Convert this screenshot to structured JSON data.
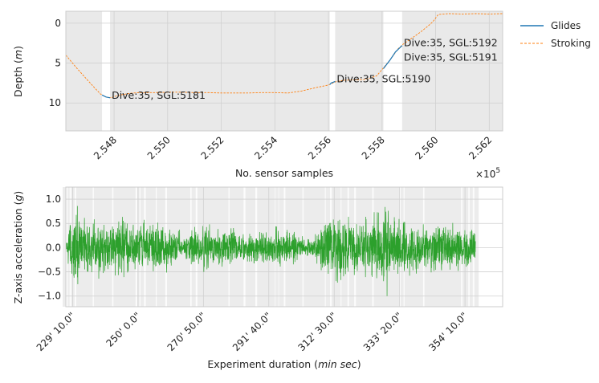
{
  "chart_data": [
    {
      "type": "line",
      "xlabel": "No. sensor samples",
      "ylabel_main": "Depth (",
      "ylabel_unit": "m",
      "ylabel_close": ")",
      "x_scale_label": "×10",
      "x_scale_exp": "5",
      "x_ticks": [
        2.548,
        2.55,
        2.552,
        2.554,
        2.556,
        2.558,
        2.56,
        2.562
      ],
      "x_tick_labels": [
        "2.548",
        "2.550",
        "2.552",
        "2.554",
        "2.556",
        "2.558",
        "2.560",
        "2.562"
      ],
      "xlim": [
        2.5462,
        2.5625
      ],
      "y_ticks": [
        0,
        5,
        10
      ],
      "y_tick_labels": [
        "0",
        "5",
        "10"
      ],
      "ylim": [
        13.5,
        -1.5
      ],
      "y_inverted": true,
      "grid": true,
      "legend_position": "outside-right",
      "shaded_spans": [
        [
          2.5462,
          2.54755
        ],
        [
          2.54785,
          2.55605
        ],
        [
          2.55625,
          2.55805
        ],
        [
          2.55875,
          2.5625
        ]
      ],
      "series": [
        {
          "name": "Glides",
          "color": "#1f77b4",
          "style": "solid",
          "segments": [
            [
              [
                2.54755,
                9.0
              ],
              [
                2.5477,
                9.25
              ],
              [
                2.54785,
                9.35
              ]
            ],
            [
              [
                2.55605,
                7.7
              ],
              [
                2.5561,
                7.5
              ],
              [
                2.55625,
                7.3
              ]
            ],
            [
              [
                2.55805,
                5.7
              ],
              [
                2.5583,
                4.6
              ],
              [
                2.5585,
                3.6
              ],
              [
                2.55875,
                2.8
              ]
            ]
          ]
        },
        {
          "name": "Stroking",
          "color": "#ff7f0e",
          "style": "dashed",
          "points": [
            [
              2.5462,
              4.0
            ],
            [
              2.5466,
              5.6
            ],
            [
              2.547,
              7.1
            ],
            [
              2.5473,
              8.2
            ],
            [
              2.5475,
              8.9
            ],
            [
              2.5477,
              9.25
            ],
            [
              2.5479,
              9.35
            ],
            [
              2.548,
              9.2
            ],
            [
              2.5483,
              8.95
            ],
            [
              2.5487,
              8.75
            ],
            [
              2.549,
              8.7
            ],
            [
              2.5495,
              8.7
            ],
            [
              2.55,
              8.65
            ],
            [
              2.5505,
              8.65
            ],
            [
              2.551,
              8.7
            ],
            [
              2.5515,
              8.7
            ],
            [
              2.552,
              8.75
            ],
            [
              2.5525,
              8.75
            ],
            [
              2.553,
              8.75
            ],
            [
              2.5535,
              8.7
            ],
            [
              2.554,
              8.7
            ],
            [
              2.5545,
              8.75
            ],
            [
              2.555,
              8.5
            ],
            [
              2.5555,
              8.1
            ],
            [
              2.556,
              7.75
            ],
            [
              2.5563,
              7.3
            ],
            [
              2.5566,
              7.15
            ],
            [
              2.557,
              7.1
            ],
            [
              2.5574,
              7.05
            ],
            [
              2.5578,
              6.6
            ],
            [
              2.558,
              5.8
            ],
            [
              2.5583,
              4.6
            ],
            [
              2.5586,
              3.2
            ],
            [
              2.5588,
              2.6
            ],
            [
              2.5591,
              1.9
            ],
            [
              2.5594,
              1.2
            ],
            [
              2.5597,
              0.4
            ],
            [
              2.5599,
              -0.2
            ],
            [
              2.5601,
              -1.1
            ],
            [
              2.5605,
              -1.2
            ],
            [
              2.561,
              -1.15
            ],
            [
              2.5615,
              -1.2
            ],
            [
              2.562,
              -1.15
            ],
            [
              2.5625,
              -1.2
            ]
          ]
        }
      ],
      "annotations": [
        {
          "text": "Dive:35, SGL:5181",
          "x": 2.54785,
          "y": 9.35
        },
        {
          "text": "Dive:35, SGL:5190",
          "x": 2.55625,
          "y": 7.3
        },
        {
          "text": "Dive:35, SGL:5191",
          "x": 2.55875,
          "y": 4.6
        },
        {
          "text": "Dive:35, SGL:5192",
          "x": 2.55875,
          "y": 2.8
        }
      ]
    },
    {
      "type": "line",
      "xlabel_main": "Experiment duration (",
      "xlabel_unit": "min sec",
      "xlabel_close": ")",
      "ylabel_main": "Z-axis acceleration (",
      "ylabel_unit": "g",
      "ylabel_close": ")",
      "x_tick_seconds": [
        13750,
        15000,
        16250,
        17500,
        18750,
        20000,
        21250
      ],
      "x_tick_labels": [
        "229' 10.0\"",
        "250' 0.0\"",
        "270' 50.0\"",
        "291' 40.0\"",
        "312' 30.0\"",
        "333' 20.0\"",
        "354' 10.0\""
      ],
      "xlim_seconds": [
        13620,
        21970
      ],
      "y_ticks": [
        -1.0,
        -0.5,
        0.0,
        0.5,
        1.0
      ],
      "y_tick_labels": [
        "−1.0",
        "−0.5",
        "0.0",
        "0.5",
        "1.0"
      ],
      "ylim": [
        -1.22,
        1.25
      ],
      "grid": true,
      "series": [
        {
          "color": "#2ca02c",
          "x_start_seconds": 13620,
          "x_end_seconds": 21450,
          "envelope": [
            [
              13620,
              0.0
            ],
            [
              13700,
              0.6
            ],
            [
              13800,
              0.9
            ],
            [
              13900,
              0.65
            ],
            [
              14100,
              0.55
            ],
            [
              14300,
              0.6
            ],
            [
              14500,
              0.5
            ],
            [
              14700,
              0.6
            ],
            [
              14900,
              0.45
            ],
            [
              15100,
              0.55
            ],
            [
              15300,
              0.5
            ],
            [
              15500,
              0.55
            ],
            [
              15700,
              0.4
            ],
            [
              15900,
              0.3
            ],
            [
              16100,
              0.45
            ],
            [
              16300,
              0.5
            ],
            [
              16500,
              0.35
            ],
            [
              16700,
              0.45
            ],
            [
              16900,
              0.4
            ],
            [
              17100,
              0.3
            ],
            [
              17300,
              0.35
            ],
            [
              17500,
              0.3
            ],
            [
              17700,
              0.45
            ],
            [
              17900,
              0.35
            ],
            [
              18100,
              0.25
            ],
            [
              18300,
              0.2
            ],
            [
              18500,
              0.5
            ],
            [
              18700,
              0.75
            ],
            [
              18900,
              0.65
            ],
            [
              19100,
              0.55
            ],
            [
              19300,
              0.6
            ],
            [
              19500,
              0.65
            ],
            [
              19650,
              0.85
            ],
            [
              19750,
              1.1
            ],
            [
              19850,
              0.7
            ],
            [
              20000,
              0.55
            ],
            [
              20200,
              0.6
            ],
            [
              20400,
              0.45
            ],
            [
              20600,
              0.55
            ],
            [
              20800,
              0.45
            ],
            [
              21000,
              0.5
            ],
            [
              21200,
              0.45
            ],
            [
              21450,
              0.4
            ]
          ]
        }
      ]
    }
  ],
  "legend": {
    "glides_label": "Glides",
    "stroking_label": "Stroking"
  }
}
